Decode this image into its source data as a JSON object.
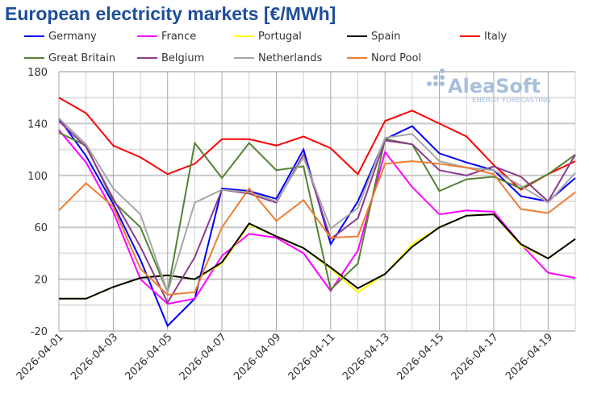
{
  "chart_data": {
    "type": "line",
    "title": "European electricity markets [€/MWh]",
    "watermark": "AleaSoft ENERGY FORECASTING",
    "x": [
      "2026-04-01",
      "2026-04-02",
      "2026-04-03",
      "2026-04-04",
      "2026-04-05",
      "2026-04-06",
      "2026-04-07",
      "2026-04-08",
      "2026-04-09",
      "2026-04-10",
      "2026-04-11",
      "2026-04-12",
      "2026-04-13",
      "2026-04-14",
      "2026-04-15",
      "2026-04-16",
      "2026-04-17",
      "2026-04-18",
      "2026-04-19",
      "2026-04-20"
    ],
    "xticks": [
      "2026-04-01",
      "2026-04-03",
      "2026-04-05",
      "2026-04-07",
      "2026-04-09",
      "2026-04-11",
      "2026-04-13",
      "2026-04-15",
      "2026-04-17",
      "2026-04-19"
    ],
    "yticks": [
      -20,
      20,
      60,
      100,
      140,
      180
    ],
    "ylim": [
      -20,
      180
    ],
    "grid": true,
    "legend": "top",
    "series": [
      {
        "name": "Germany",
        "color": "#0000ff",
        "values": [
          144,
          115,
          78,
          35,
          -16,
          5,
          90,
          88,
          82,
          120,
          47,
          80,
          128,
          138,
          117,
          110,
          104,
          84,
          80,
          98
        ]
      },
      {
        "name": "France",
        "color": "#ff00ff",
        "values": [
          135,
          110,
          72,
          20,
          1,
          5,
          38,
          55,
          52,
          40,
          11,
          42,
          118,
          91,
          70,
          73,
          72,
          47,
          25,
          21
        ]
      },
      {
        "name": "Portugal",
        "color": "#ffff00",
        "values": [
          5,
          5,
          14,
          21,
          23,
          20,
          32,
          62,
          53,
          44,
          28,
          10,
          24,
          47,
          60,
          69,
          70,
          46,
          36,
          51
        ]
      },
      {
        "name": "Spain",
        "color": "#000000",
        "values": [
          5,
          5,
          14,
          21,
          23,
          20,
          33,
          63,
          53,
          44,
          29,
          13,
          24,
          45,
          60,
          69,
          70,
          47,
          36,
          51
        ]
      },
      {
        "name": "Italy",
        "color": "#ff0000",
        "values": [
          160,
          148,
          123,
          114,
          101,
          109,
          128,
          128,
          123,
          130,
          121,
          101,
          142,
          150,
          140,
          130,
          108,
          89,
          101,
          111
        ]
      },
      {
        "name": "Great Britain",
        "color": "#548235",
        "values": [
          133,
          123,
          80,
          60,
          10,
          125,
          98,
          125,
          104,
          107,
          12,
          32,
          128,
          124,
          88,
          97,
          99,
          90,
          101,
          116
        ]
      },
      {
        "name": "Belgium",
        "color": "#8e3a8e",
        "values": [
          142,
          122,
          82,
          45,
          2,
          37,
          89,
          86,
          79,
          116,
          51,
          67,
          127,
          124,
          104,
          100,
          107,
          99,
          80,
          116
        ]
      },
      {
        "name": "Netherlands",
        "color": "#a6a6a6",
        "values": [
          144,
          124,
          90,
          70,
          10,
          79,
          89,
          87,
          80,
          114,
          59,
          75,
          129,
          132,
          111,
          106,
          104,
          92,
          79,
          102
        ]
      },
      {
        "name": "Nord Pool",
        "color": "#ed7d31",
        "values": [
          73,
          94,
          76,
          28,
          8,
          10,
          60,
          90,
          65,
          81,
          52,
          53,
          109,
          111,
          109,
          106,
          101,
          74,
          71,
          87
        ]
      }
    ]
  }
}
